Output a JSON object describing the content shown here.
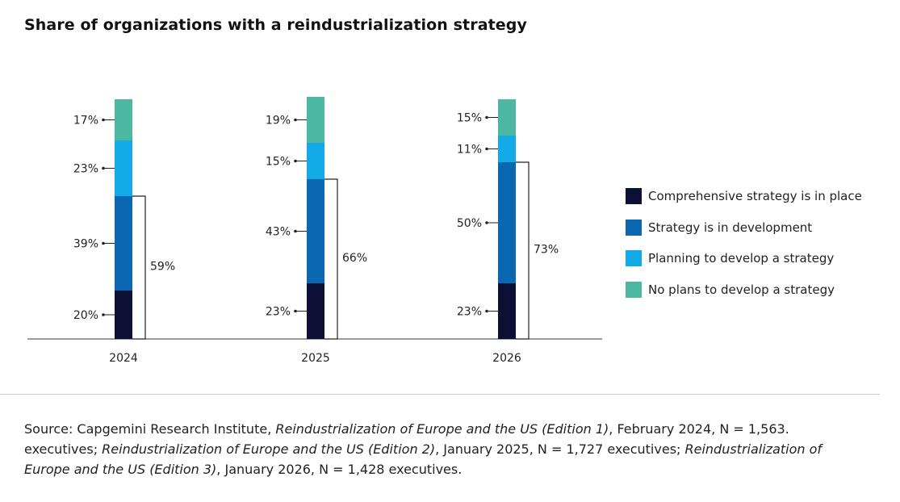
{
  "title": "Share of organizations with a reindustrialization strategy",
  "colors": {
    "comprehensive": "#0d1035",
    "development": "#0a68b2",
    "planning": "#12abe8",
    "no_plans": "#4cb8a2"
  },
  "chart_data": {
    "type": "bar",
    "stacked": true,
    "categories": [
      "2024",
      "2025",
      "2026"
    ],
    "ylim": [
      0,
      100
    ],
    "grid": false,
    "legend_position": "right",
    "series": [
      {
        "name": "Comprehensive strategy is in place",
        "values": [
          20,
          23,
          23
        ],
        "labels": [
          "20%",
          "23%",
          "23%"
        ]
      },
      {
        "name": "Strategy is in development",
        "values": [
          39,
          43,
          50
        ],
        "labels": [
          "39%",
          "43%",
          "50%"
        ]
      },
      {
        "name": "Planning to develop a strategy",
        "values": [
          23,
          15,
          11
        ],
        "labels": [
          "23%",
          "15%",
          "11%"
        ]
      },
      {
        "name": "No plans to develop a strategy",
        "values": [
          17,
          19,
          15
        ],
        "labels": [
          "17%",
          "19%",
          "15%"
        ]
      }
    ],
    "totals": {
      "values": [
        59,
        66,
        73
      ],
      "labels": [
        "59%",
        "66%",
        "73%"
      ]
    }
  },
  "source": {
    "prefix": "Source: Capgemini Research Institute, ",
    "ed1": "Reindustrialization of Europe and the US (Edition 1)",
    "mid1": ", February 2024, N = 1,563. executives; ",
    "ed2": "Reindustrialization of Europe and the US (Edition 2)",
    "mid2": ", January 2025, N = 1,727 executives; ",
    "ed3": "Reindustrialization of Europe and the US (Edition 3)",
    "suffix": ", January 2026, N = 1,428 executives."
  }
}
